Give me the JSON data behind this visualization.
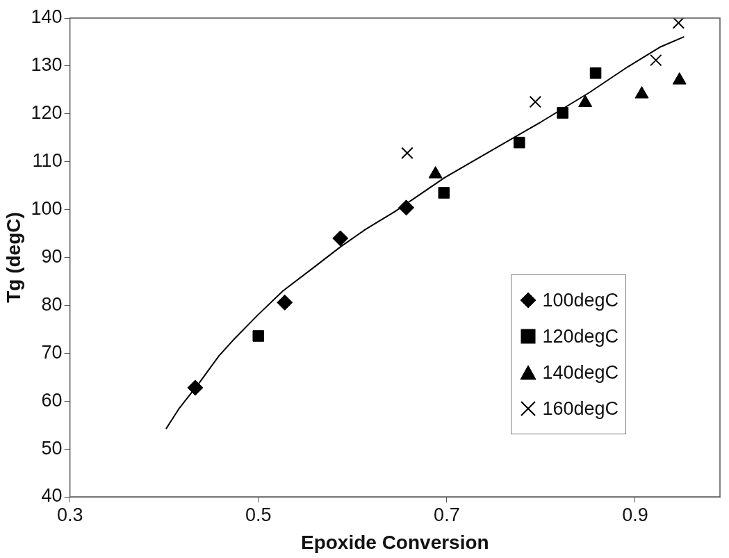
{
  "chart_data": {
    "type": "scatter",
    "xlabel": "Epoxide Conversion",
    "ylabel": "Tg (degC)",
    "xlim": [
      0.3,
      0.99
    ],
    "xticks": [
      0.3,
      0.5,
      0.7,
      0.9
    ],
    "ylim": [
      40,
      140
    ],
    "yticks": [
      40,
      50,
      60,
      70,
      80,
      90,
      100,
      110,
      120,
      130,
      140
    ],
    "grid": false,
    "legend": "bottom right",
    "series": [
      {
        "name": "100degC",
        "color": "#000000",
        "marker": "diamond",
        "x": [
          0.433,
          0.528,
          0.587,
          0.657
        ],
        "values": [
          62.8,
          80.6,
          94,
          100.4
        ]
      },
      {
        "name": "120degC",
        "color": "#000000",
        "marker": "square",
        "x": [
          0.5,
          0.697,
          0.777,
          0.823,
          0.858
        ],
        "values": [
          73.6,
          103.5,
          114,
          120.2,
          128.5
        ]
      },
      {
        "name": "140degC",
        "color": "#000000",
        "marker": "triangle",
        "x": [
          0.688,
          0.847,
          0.907,
          0.947
        ],
        "values": [
          107.4,
          122.3,
          124.1,
          127
        ]
      },
      {
        "name": "160degC",
        "color": "#000000",
        "marker": "cross",
        "x": [
          0.658,
          0.794,
          0.922,
          0.946
        ],
        "values": [
          111.8,
          122.5,
          131.2,
          139
        ]
      },
      {
        "type": "line",
        "color": "#000000",
        "marker": "none",
        "line_style": "solid",
        "x": [
          0.402,
          0.416,
          0.438,
          0.458,
          0.475,
          0.499,
          0.526,
          0.56,
          0.587,
          0.614,
          0.645,
          0.698,
          0.749,
          0.8,
          0.851,
          0.892,
          0.926,
          0.952
        ],
        "values": [
          54.2,
          58.5,
          64,
          69.4,
          73.1,
          77.9,
          83,
          88.1,
          92.2,
          95.9,
          99.6,
          106.7,
          112.5,
          118.3,
          124.4,
          129.8,
          133.9,
          136.1
        ]
      }
    ]
  }
}
